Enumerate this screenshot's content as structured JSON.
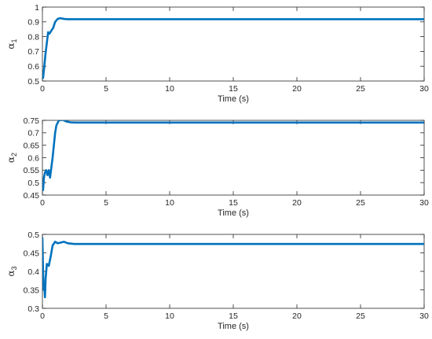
{
  "chart_data": [
    {
      "type": "line",
      "ylabel": {
        "symbol": "α",
        "subscript": "1"
      },
      "xlabel": "Time (s)",
      "xlim": [
        0,
        30
      ],
      "ylim": [
        0.5,
        1
      ],
      "xticks": [
        0,
        5,
        10,
        15,
        20,
        25,
        30
      ],
      "xtick_labels": [
        "0",
        "5",
        "10",
        "15",
        "20",
        "25",
        "30"
      ],
      "yticks": [
        0.5,
        0.6,
        0.7,
        0.8,
        0.9,
        1
      ],
      "ytick_labels": [
        "0.5",
        "0.6",
        "0.7",
        "0.8",
        "0.9",
        "1"
      ],
      "grid": false,
      "color": "#0072BD",
      "series": [
        {
          "x": [
            0,
            0.05,
            0.15,
            0.25,
            0.35,
            0.45,
            0.55,
            0.7,
            0.85,
            1.0,
            1.2,
            1.4,
            1.7,
            2.0,
            3.0,
            30
          ],
          "y": [
            0.56,
            0.52,
            0.6,
            0.69,
            0.76,
            0.83,
            0.82,
            0.84,
            0.86,
            0.9,
            0.92,
            0.925,
            0.92,
            0.918,
            0.918,
            0.918
          ]
        }
      ]
    },
    {
      "type": "line",
      "ylabel": {
        "symbol": "α",
        "subscript": "2"
      },
      "xlabel": "Time (s)",
      "xlim": [
        0,
        30
      ],
      "ylim": [
        0.45,
        0.75
      ],
      "xticks": [
        0,
        5,
        10,
        15,
        20,
        25,
        30
      ],
      "xtick_labels": [
        "0",
        "5",
        "10",
        "15",
        "20",
        "25",
        "30"
      ],
      "yticks": [
        0.45,
        0.5,
        0.55,
        0.6,
        0.65,
        0.7,
        0.75
      ],
      "ytick_labels": [
        "0.45",
        "0.5",
        "0.55",
        "0.6",
        "0.65",
        "0.7",
        "0.75"
      ],
      "grid": false,
      "color": "#0072BD",
      "series": [
        {
          "x": [
            0,
            0.05,
            0.12,
            0.2,
            0.3,
            0.4,
            0.5,
            0.6,
            0.7,
            0.8,
            0.9,
            1.0,
            1.1,
            1.3,
            1.6,
            1.9,
            2.2,
            2.6,
            3.0,
            30
          ],
          "y": [
            0.5,
            0.47,
            0.52,
            0.54,
            0.55,
            0.53,
            0.55,
            0.52,
            0.56,
            0.6,
            0.65,
            0.7,
            0.73,
            0.75,
            0.752,
            0.745,
            0.742,
            0.741,
            0.741,
            0.741
          ]
        }
      ]
    },
    {
      "type": "line",
      "ylabel": {
        "symbol": "α",
        "subscript": "3"
      },
      "xlabel": "Time (s)",
      "xlim": [
        0,
        30
      ],
      "ylim": [
        0.3,
        0.5
      ],
      "xticks": [
        0,
        5,
        10,
        15,
        20,
        25,
        30
      ],
      "xtick_labels": [
        "0",
        "5",
        "10",
        "15",
        "20",
        "25",
        "30"
      ],
      "yticks": [
        0.3,
        0.35,
        0.4,
        0.45,
        0.5
      ],
      "ytick_labels": [
        "0.3",
        "0.35",
        "0.4",
        "0.45",
        "0.5"
      ],
      "grid": false,
      "color": "#0072BD",
      "series": [
        {
          "x": [
            0,
            0.05,
            0.1,
            0.15,
            0.2,
            0.25,
            0.35,
            0.5,
            0.65,
            0.8,
            1.0,
            1.2,
            1.45,
            1.7,
            2.0,
            2.5,
            3.0,
            30
          ],
          "y": [
            0.49,
            0.4,
            0.35,
            0.36,
            0.33,
            0.38,
            0.42,
            0.415,
            0.44,
            0.47,
            0.48,
            0.476,
            0.478,
            0.48,
            0.476,
            0.474,
            0.474,
            0.474
          ]
        }
      ]
    }
  ]
}
